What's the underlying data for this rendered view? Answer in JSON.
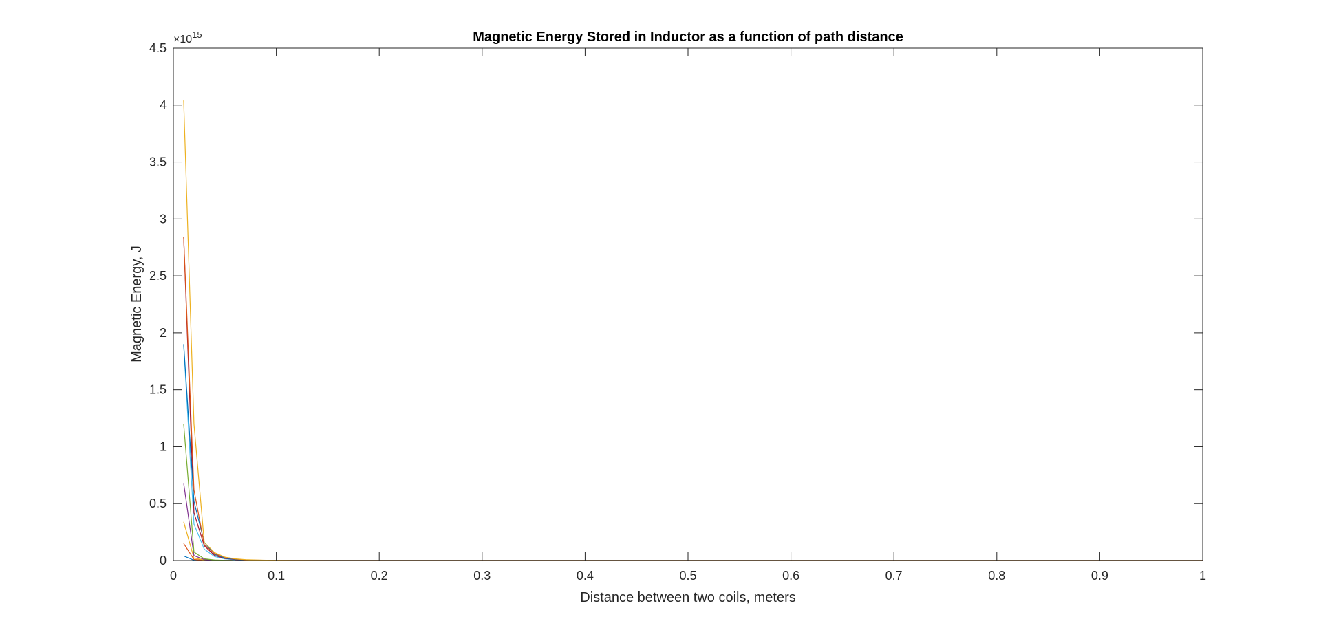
{
  "chart_data": {
    "type": "line",
    "title": "Magnetic Energy Stored in Inductor as a function of path distance",
    "xlabel": "Distance between two coils, meters",
    "ylabel": "Magnetic Energy, J",
    "y_exponent_label": "×10",
    "y_exponent_power": "15",
    "xlim": [
      0,
      1
    ],
    "ylim": [
      0,
      4.5
    ],
    "y_scale_factor": 1000000000000000.0,
    "grid": false,
    "x_ticks": [
      0,
      0.1,
      0.2,
      0.3,
      0.4,
      0.5,
      0.6,
      0.7,
      0.8,
      0.9,
      1
    ],
    "x_tick_labels": [
      "0",
      "0.1",
      "0.2",
      "0.3",
      "0.4",
      "0.5",
      "0.6",
      "0.7",
      "0.8",
      "0.9",
      "1"
    ],
    "y_ticks": [
      0,
      0.5,
      1,
      1.5,
      2,
      2.5,
      3,
      3.5,
      4,
      4.5
    ],
    "y_tick_labels": [
      "0",
      "0.5",
      "1",
      "1.5",
      "2",
      "2.5",
      "3",
      "3.5",
      "4",
      "4.5"
    ],
    "x": [
      0.01,
      0.02,
      0.03,
      0.04,
      0.05,
      0.06,
      0.07,
      0.08,
      0.09,
      0.1,
      0.15,
      0.2,
      0.3,
      0.4,
      0.5,
      0.6,
      0.7,
      0.8,
      0.9,
      1.0
    ],
    "series": [
      {
        "color": "#0072BD",
        "values": [
          0.04,
          0.0025,
          0.0005,
          0.00016,
          6e-05,
          3e-05,
          2e-05,
          1e-05,
          5e-06,
          4e-06,
          0,
          0,
          0,
          0,
          0,
          0,
          0,
          0,
          0,
          0
        ]
      },
      {
        "color": "#D95319",
        "values": [
          0.15,
          0.0094,
          0.0019,
          0.0006,
          0.00024,
          0.00012,
          6e-05,
          4e-05,
          2e-05,
          1.5e-05,
          0,
          0,
          0,
          0,
          0,
          0,
          0,
          0,
          0,
          0
        ]
      },
      {
        "color": "#EDB120",
        "values": [
          0.34,
          0.021,
          0.0042,
          0.0013,
          0.00054,
          0.00026,
          0.00014,
          8e-05,
          5e-05,
          3e-05,
          0,
          0,
          0,
          0,
          0,
          0,
          0,
          0,
          0,
          0
        ]
      },
      {
        "color": "#7E2F8E",
        "values": [
          0.68,
          0.0425,
          0.0084,
          0.0027,
          0.0011,
          0.00052,
          0.00028,
          0.00017,
          0.0001,
          7e-05,
          0,
          0,
          0,
          0,
          0,
          0,
          0,
          0,
          0,
          0
        ]
      },
      {
        "color": "#77AC30",
        "values": [
          1.2,
          0.075,
          0.015,
          0.0047,
          0.0019,
          0.00093,
          0.0005,
          0.00029,
          0.00018,
          0.00012,
          0,
          0,
          0,
          0,
          0,
          0,
          0,
          0,
          0,
          0
        ]
      },
      {
        "color": "#4DBEEE",
        "values": [
          1.9,
          0.32,
          0.1,
          0.035,
          0.014,
          0.0066,
          0.0033,
          0.0018,
          0.001,
          0.0006,
          0.0001,
          0,
          0,
          0,
          0,
          0,
          0,
          0,
          0,
          0
        ]
      },
      {
        "color": "#A2142F",
        "values": [
          2.84,
          0.42,
          0.13,
          0.045,
          0.018,
          0.0085,
          0.0043,
          0.0023,
          0.0013,
          0.0008,
          0.0001,
          0,
          0,
          0,
          0,
          0,
          0,
          0,
          0,
          0
        ]
      },
      {
        "color": "#0072BD",
        "values": [
          1.9,
          0.52,
          0.16,
          0.055,
          0.022,
          0.01,
          0.0052,
          0.0028,
          0.0016,
          0.001,
          0.0001,
          0,
          0,
          0,
          0,
          0,
          0,
          0,
          0,
          0
        ]
      },
      {
        "color": "#D95319",
        "values": [
          2.84,
          0.62,
          0.14,
          0.06,
          0.028,
          0.013,
          0.0065,
          0.0035,
          0.002,
          0.0012,
          0.0002,
          0,
          0,
          0,
          0,
          0,
          0,
          0,
          0,
          0
        ]
      },
      {
        "color": "#EDB120",
        "values": [
          4.04,
          1.2,
          0.16,
          0.07,
          0.03,
          0.015,
          0.008,
          0.0045,
          0.0026,
          0.0015,
          0.0002,
          0,
          0,
          0,
          0,
          0,
          0,
          0,
          0,
          0
        ]
      }
    ]
  }
}
